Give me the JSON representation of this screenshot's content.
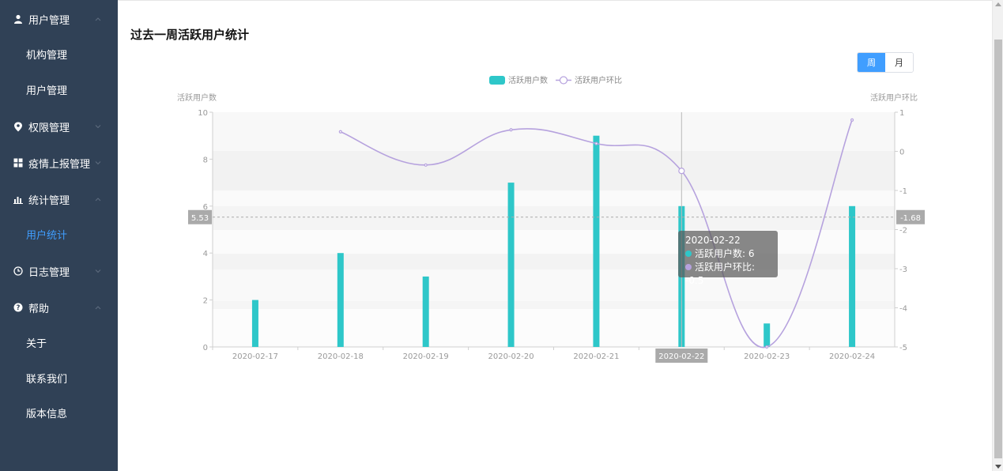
{
  "sidebar": {
    "groups": [
      {
        "label": "用户管理",
        "icon": "user-icon",
        "expanded": true,
        "children": [
          "机构管理",
          "用户管理"
        ]
      },
      {
        "label": "权限管理",
        "icon": "location-pin-icon",
        "expanded": false,
        "children": []
      },
      {
        "label": "疫情上报管理",
        "icon": "grid-icon",
        "expanded": false,
        "children": []
      },
      {
        "label": "统计管理",
        "icon": "bar-chart-icon",
        "expanded": true,
        "children": [
          "用户统计"
        ]
      },
      {
        "label": "日志管理",
        "icon": "clock-icon",
        "expanded": false,
        "children": []
      },
      {
        "label": "帮助",
        "icon": "question-icon",
        "expanded": true,
        "children": [
          "关于",
          "联系我们",
          "版本信息"
        ]
      }
    ],
    "active_item": "用户统计",
    "colors": {
      "background": "#304156",
      "text": "#ffffff",
      "active": "#409EFF"
    }
  },
  "main": {
    "title": "过去一周活跃用户统计",
    "period_toggle": {
      "week": "周",
      "month": "月",
      "selected": "周"
    }
  },
  "chart_data": {
    "type": "bar",
    "categories": [
      "2020-02-17",
      "2020-02-18",
      "2020-02-19",
      "2020-02-20",
      "2020-02-21",
      "2020-02-22",
      "2020-02-23",
      "2020-02-24"
    ],
    "series": [
      {
        "name": "活跃用户数",
        "type": "bar",
        "axis": "left",
        "color": "#2EC7C9",
        "values": [
          2,
          4,
          3,
          7,
          9,
          6,
          1,
          6
        ]
      },
      {
        "name": "活跃用户环比",
        "type": "line",
        "smooth": true,
        "axis": "right",
        "color": "#B6A2DE",
        "values": [
          null,
          0.5,
          -0.35,
          0.55,
          0.2,
          -0.5,
          -5,
          0.8
        ]
      }
    ],
    "y_left": {
      "label": "活跃用户数",
      "min": 0,
      "max": 10,
      "ticks": [
        0,
        2,
        4,
        6,
        8,
        10
      ]
    },
    "y_right": {
      "label": "活跃用户环比",
      "min": -5,
      "max": 1,
      "ticks": [
        1,
        0,
        -1,
        -2,
        -3,
        -4,
        -5
      ]
    },
    "legend": {
      "placement": "top-center",
      "items": [
        "活跃用户数",
        "活跃用户环比"
      ]
    },
    "axis_pointer": {
      "category": "2020-02-22",
      "left_value": "5.53",
      "right_value": "-1.68"
    },
    "tooltip": {
      "title": "2020-02-22",
      "rows": [
        "活跃用户数: 6",
        "活跃用户环比: -0.5"
      ]
    },
    "grid": "alternating-bands"
  }
}
